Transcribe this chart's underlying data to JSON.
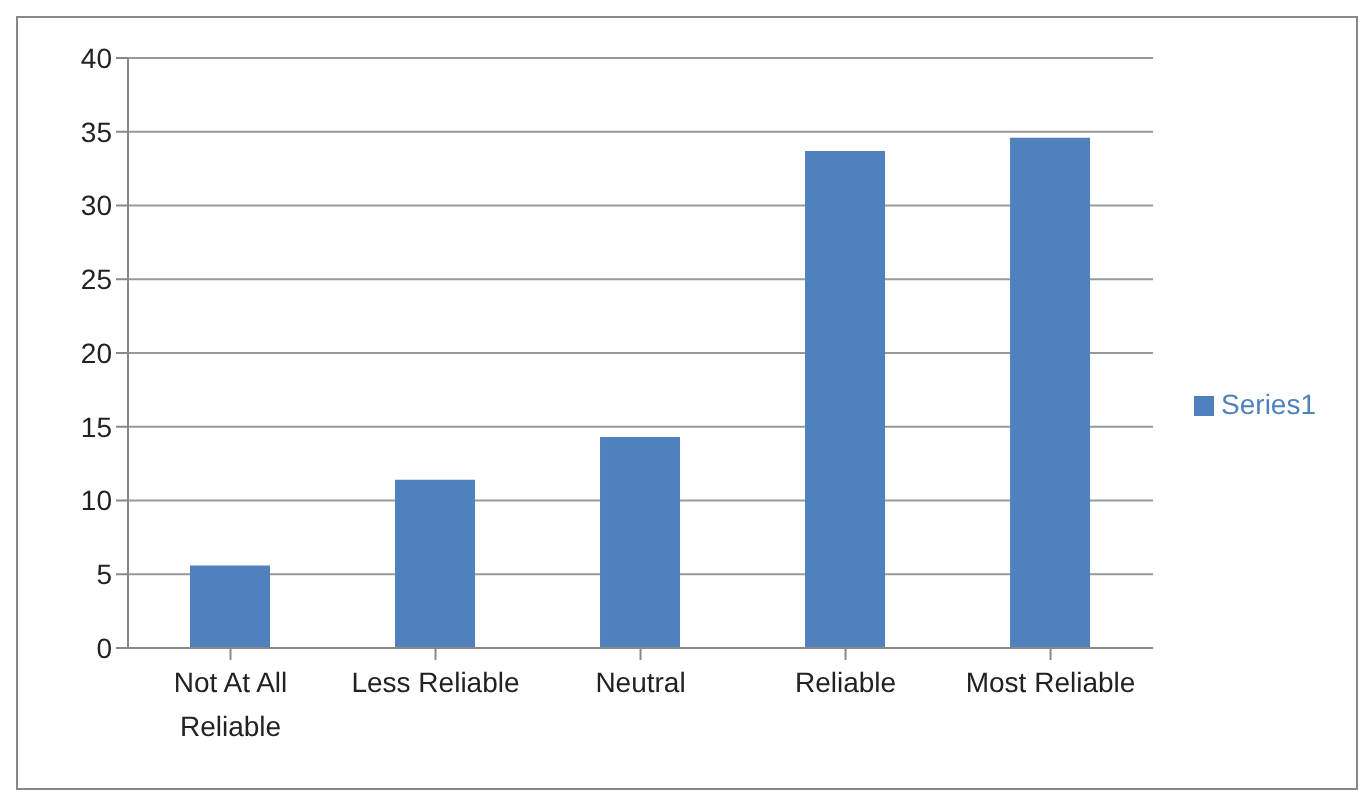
{
  "chart_data": {
    "type": "bar",
    "categories": [
      "Not At All Reliable",
      "Less Reliable",
      "Neutral",
      "Reliable",
      "Most Reliable"
    ],
    "series": [
      {
        "name": "Series1",
        "color": "#4f81bd",
        "values": [
          5.6,
          11.4,
          14.3,
          33.7,
          34.6
        ]
      }
    ],
    "ylim": [
      0,
      40
    ],
    "yticks": [
      0,
      5,
      10,
      15,
      20,
      25,
      30,
      35,
      40
    ],
    "grid": "y",
    "legend": "right"
  }
}
